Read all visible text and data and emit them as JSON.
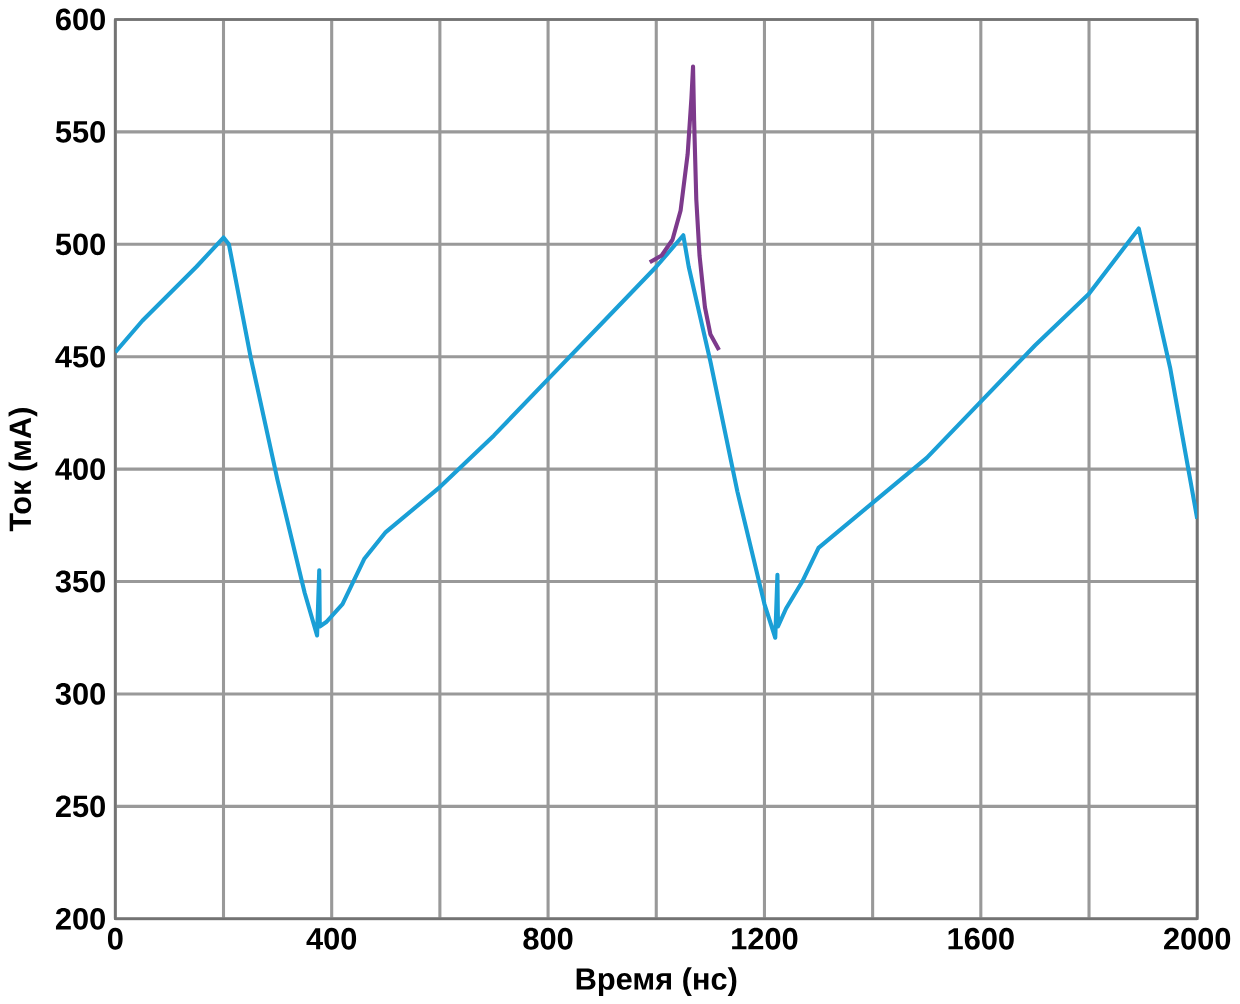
{
  "chart_data": {
    "type": "line",
    "xlabel": "Время (нс)",
    "ylabel": "Ток (мА)",
    "xlim": [
      0,
      2000
    ],
    "ylim": [
      200,
      600
    ],
    "xticks": [
      0,
      {
        "value": 200,
        "label": null
      },
      400,
      {
        "value": 600,
        "label": null
      },
      800,
      {
        "value": 1000,
        "label": null
      },
      1200,
      {
        "value": 1400,
        "label": null
      },
      1600,
      {
        "value": 1800,
        "label": null
      },
      2000
    ],
    "yticks": [
      200,
      250,
      300,
      350,
      400,
      450,
      500,
      550,
      600
    ],
    "grid": true,
    "marker": "none",
    "line_style": "solid",
    "series": [
      {
        "color": "#1a9fd6",
        "x": [
          0,
          50,
          100,
          150,
          200,
          210,
          250,
          300,
          350,
          373,
          377,
          378,
          390,
          420,
          460,
          500,
          600,
          700,
          800,
          900,
          1000,
          1050,
          1060,
          1100,
          1150,
          1200,
          1220,
          1224,
          1225,
          1240,
          1270,
          1300,
          1400,
          1500,
          1600,
          1700,
          1800,
          1892,
          1950,
          2000
        ],
        "values": [
          452,
          466,
          478,
          490,
          503,
          500,
          450,
          395,
          345,
          326,
          355,
          330,
          332,
          340,
          360,
          372,
          392,
          415,
          440,
          465,
          490,
          504,
          490,
          448,
          390,
          340,
          325,
          353,
          330,
          338,
          350,
          365,
          385,
          405,
          430,
          455,
          478,
          507,
          445,
          378
        ]
      },
      {
        "color": "#7d3a8c",
        "x": [
          988,
          1010,
          1030,
          1045,
          1058,
          1065,
          1068,
          1070,
          1074,
          1080,
          1090,
          1100,
          1116
        ],
        "values": [
          492,
          495,
          502,
          515,
          540,
          565,
          579,
          555,
          520,
          495,
          472,
          460,
          453
        ]
      }
    ]
  }
}
